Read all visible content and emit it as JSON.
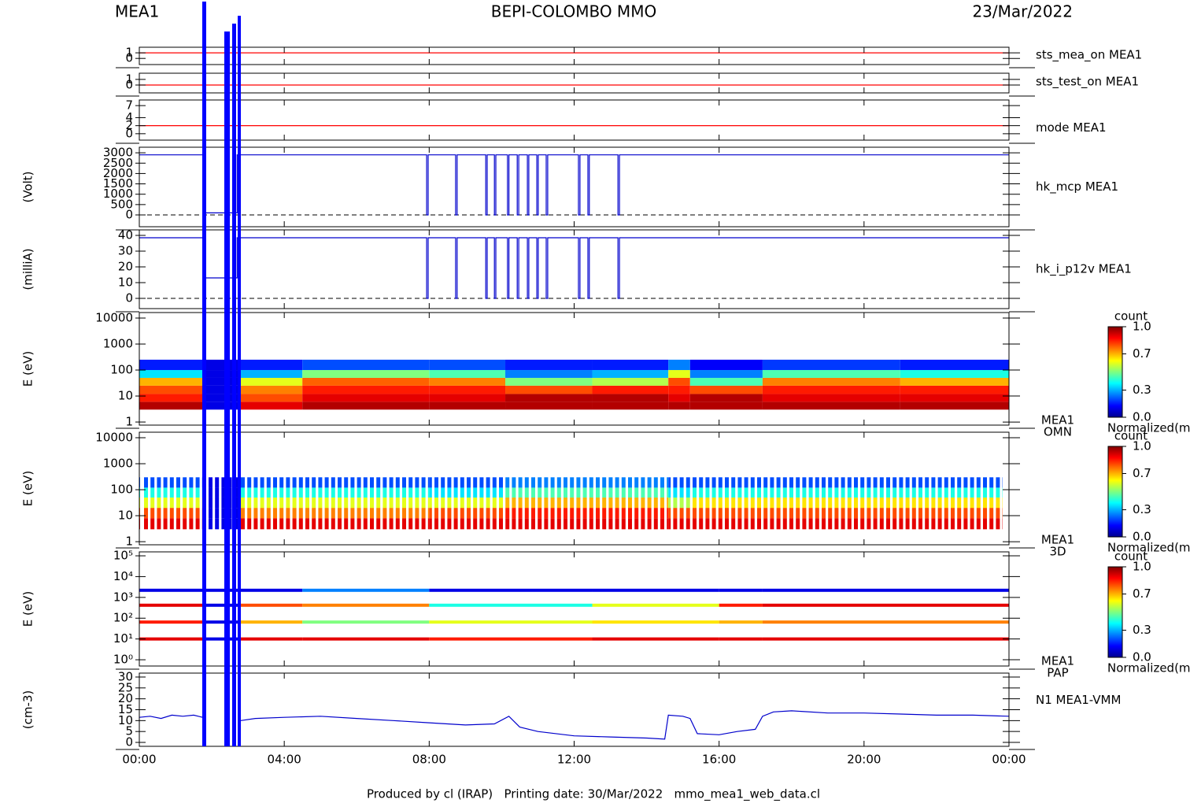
{
  "header": {
    "left": "MEA1",
    "title": "BEPI-COLOMBO MMO",
    "date": "23/Mar/2022"
  },
  "footer": "Produced by cl (IRAP)   Printing date: 30/Mar/2022   mmo_mea1_web_data.cl",
  "chart_data": [
    {
      "type": "line",
      "right_label": "sts_mea_on MEA1",
      "color": "#ff0000",
      "ylim": [
        -1.1,
        2
      ],
      "yticks": [
        0,
        1
      ],
      "x": [
        0,
        24
      ],
      "values": [
        1,
        1
      ]
    },
    {
      "type": "line",
      "right_label": "sts_test_on MEA1",
      "color": "#ff0000",
      "ylim": [
        -1.4,
        2.1
      ],
      "yticks": [
        0,
        1
      ],
      "x": [
        0,
        24
      ],
      "values": [
        0,
        0
      ]
    },
    {
      "type": "line",
      "right_label": "mode MEA1",
      "color": "#ff0000",
      "ylim": [
        -1.6,
        8.4
      ],
      "yticks": [
        0,
        2,
        4,
        7
      ],
      "x": [
        0,
        24
      ],
      "values": [
        2,
        2
      ]
    },
    {
      "type": "line",
      "ylabel": "(Volt)",
      "right_label": "hk_mcp MEA1",
      "color": "#0000cc",
      "zero_line": "dashed",
      "ylim": [
        -570,
        3270
      ],
      "yticks": [
        0,
        500,
        1000,
        1500,
        2000,
        2500,
        3000
      ],
      "x": [
        0,
        1.8,
        1.8,
        2.7,
        2.7,
        7.93,
        7.93,
        7.97,
        7.97,
        8.73,
        8.73,
        8.77,
        8.77,
        9.56,
        9.56,
        9.6,
        9.6,
        9.8,
        9.8,
        9.84,
        9.84,
        10.16,
        10.16,
        10.2,
        10.2,
        10.43,
        10.43,
        10.47,
        10.47,
        10.71,
        10.71,
        10.75,
        10.75,
        10.97,
        10.97,
        11.01,
        11.01,
        11.23,
        11.23,
        11.27,
        11.27,
        12.12,
        12.12,
        12.16,
        12.16,
        12.38,
        12.38,
        12.42,
        12.42,
        13.21,
        13.21,
        13.25,
        13.25,
        24
      ],
      "values": [
        2900,
        2900,
        100,
        100,
        2900,
        2900,
        0,
        0,
        2900,
        2900,
        0,
        0,
        2900,
        2900,
        0,
        0,
        2900,
        2900,
        0,
        0,
        2900,
        2900,
        0,
        0,
        2900,
        2900,
        0,
        0,
        2900,
        2900,
        0,
        0,
        2900,
        2900,
        0,
        0,
        2900,
        2900,
        0,
        0,
        2900,
        2900,
        0,
        0,
        2900,
        2900,
        0,
        0,
        2900,
        2900,
        0,
        0,
        2900,
        2900
      ]
    },
    {
      "type": "line",
      "ylabel": "(milliA)",
      "right_label": "hk_i_p12v MEA1",
      "color": "#0000cc",
      "zero_line": "dashed",
      "ylim": [
        -6.5,
        43.5
      ],
      "yticks": [
        0,
        10,
        20,
        30,
        40
      ],
      "x": [
        0,
        1.8,
        1.8,
        2.7,
        2.7,
        7.93,
        7.93,
        7.97,
        7.97,
        8.73,
        8.73,
        8.77,
        8.77,
        9.56,
        9.56,
        9.6,
        9.6,
        9.8,
        9.8,
        9.84,
        9.84,
        10.16,
        10.16,
        10.2,
        10.2,
        10.43,
        10.43,
        10.47,
        10.47,
        10.71,
        10.71,
        10.75,
        10.75,
        10.97,
        10.97,
        11.01,
        11.01,
        11.23,
        11.23,
        11.27,
        11.27,
        12.12,
        12.12,
        12.16,
        12.16,
        12.38,
        12.38,
        12.42,
        12.42,
        13.21,
        13.21,
        13.25,
        13.25,
        24
      ],
      "values": [
        38.5,
        38.5,
        13,
        13,
        38.5,
        38.5,
        0,
        0,
        38.5,
        38.5,
        0,
        0,
        38.5,
        38.5,
        0,
        0,
        38.5,
        38.5,
        0,
        0,
        38.5,
        38.5,
        0,
        0,
        38.5,
        38.5,
        0,
        0,
        38.5,
        38.5,
        0,
        0,
        38.5,
        38.5,
        0,
        0,
        38.5,
        38.5,
        0,
        0,
        38.5,
        38.5,
        0,
        0,
        38.5,
        38.5,
        0,
        0,
        38.5,
        38.5,
        0,
        0,
        38.5,
        38.5
      ]
    },
    {
      "type": "spectrogram",
      "ylabel": "E (eV)",
      "right_label": [
        "MEA1",
        "OMN"
      ],
      "log_y": true,
      "ylim": [
        0.76,
        16300
      ],
      "yticks": [
        1,
        10,
        100,
        1000,
        10000
      ],
      "x_edges": [
        0,
        1.8,
        2.8,
        4.5,
        8,
        10.1,
        12.5,
        14.6,
        15.2,
        17.2,
        21,
        24
      ],
      "y_edges": [
        3,
        6,
        12,
        25,
        50,
        100,
        250
      ],
      "values": [
        [
          0.95,
          0.1,
          0.9,
          0.95,
          0.95,
          0.95,
          0.95,
          0.95,
          0.95,
          0.95,
          0.95
        ],
        [
          0.85,
          0.1,
          0.8,
          0.9,
          0.9,
          0.95,
          0.95,
          0.9,
          0.95,
          0.9,
          0.9
        ],
        [
          0.8,
          0.1,
          0.75,
          0.85,
          0.85,
          0.8,
          0.85,
          0.85,
          0.8,
          0.85,
          0.85
        ],
        [
          0.7,
          0.1,
          0.6,
          0.78,
          0.75,
          0.5,
          0.55,
          0.8,
          0.45,
          0.75,
          0.7
        ],
        [
          0.35,
          0.1,
          0.3,
          0.5,
          0.45,
          0.25,
          0.3,
          0.6,
          0.25,
          0.45,
          0.4
        ],
        [
          0.15,
          0.1,
          0.15,
          0.2,
          0.2,
          0.15,
          0.15,
          0.25,
          0.12,
          0.18,
          0.15
        ]
      ],
      "colorbar": {
        "title": "count",
        "label": "Normalized(m",
        "ticks": [
          {
            "value": 0,
            "label": "0.0"
          },
          {
            "value": 0.3,
            "label": "0.3"
          },
          {
            "value": 0.7,
            "label": "0.7"
          },
          {
            "value": 1,
            "label": "1.0"
          }
        ]
      }
    },
    {
      "type": "spectrogram",
      "ylabel": "E (eV)",
      "right_label": [
        "MEA1",
        "3D"
      ],
      "log_y": true,
      "ylim": [
        0.76,
        16300
      ],
      "yticks": [
        1,
        10,
        100,
        1000,
        10000
      ],
      "x_edges": [
        0,
        1.8,
        2.8,
        8,
        10.1,
        14.6,
        15.2,
        24
      ],
      "y_edges": [
        3,
        8,
        20,
        50,
        120,
        300
      ],
      "values": [
        [
          0.9,
          0.1,
          0.9,
          0.9,
          0.9,
          0.9,
          0.9
        ],
        [
          0.8,
          0.1,
          0.75,
          0.8,
          0.85,
          0.8,
          0.8
        ],
        [
          0.6,
          0.1,
          0.6,
          0.6,
          0.7,
          0.55,
          0.65
        ],
        [
          0.4,
          0.1,
          0.4,
          0.35,
          0.45,
          0.35,
          0.4
        ],
        [
          0.2,
          0.1,
          0.2,
          0.2,
          0.25,
          0.2,
          0.2
        ]
      ],
      "colorbar": {
        "title": "count",
        "label": "Normalized(m",
        "ticks": [
          {
            "value": 0,
            "label": "0.0"
          },
          {
            "value": 0.3,
            "label": "0.3"
          },
          {
            "value": 0.7,
            "label": "0.7"
          },
          {
            "value": 1,
            "label": "1.0"
          }
        ]
      }
    },
    {
      "type": "pap",
      "ylabel": "E (eV)",
      "right_label": [
        "MEA1",
        "PAP"
      ],
      "log_y": true,
      "ylim": [
        0.5,
        155000
      ],
      "yticks": [
        {
          "value": 1,
          "label": "10⁰"
        },
        {
          "value": 10,
          "label": "10¹"
        },
        {
          "value": 100,
          "label": "10²"
        },
        {
          "value": 1000,
          "label": "10³"
        },
        {
          "value": 10000,
          "label": "10⁴"
        },
        {
          "value": 100000,
          "label": "10⁵"
        }
      ],
      "x_edges": [
        0,
        1.8,
        2.8,
        4.5,
        8,
        12.5,
        16,
        17.2,
        24
      ],
      "energies": [
        2200,
        420,
        65,
        10
      ],
      "values": [
        [
          0.1,
          0.1,
          0.1,
          0.25,
          0.1,
          0.1,
          0.1,
          0.1
        ],
        [
          0.9,
          0.1,
          0.8,
          0.75,
          0.4,
          0.6,
          0.85,
          0.9
        ],
        [
          0.85,
          0.1,
          0.7,
          0.5,
          0.6,
          0.65,
          0.7,
          0.75
        ],
        [
          0.9,
          0.1,
          0.9,
          0.9,
          0.85,
          0.9,
          0.9,
          0.9
        ]
      ],
      "colorbar": {
        "title": "count",
        "label": "Normalized(m",
        "ticks": [
          {
            "value": 0,
            "label": "0.0"
          },
          {
            "value": 0.3,
            "label": "0.3"
          },
          {
            "value": 0.7,
            "label": "0.7"
          },
          {
            "value": 1,
            "label": "1.0"
          }
        ]
      }
    },
    {
      "type": "line",
      "ylabel": "(cm-3)",
      "right_label": "N1 MEA1-VMM",
      "color": "#0000cc",
      "ylim": [
        -1.8,
        31.8
      ],
      "yticks": [
        0,
        5,
        10,
        15,
        20,
        25,
        30
      ],
      "xlim": [
        0,
        24
      ],
      "xticks": [
        {
          "value": 0,
          "label": "00:00"
        },
        {
          "value": 4,
          "label": "04:00"
        },
        {
          "value": 8,
          "label": "08:00"
        },
        {
          "value": 12,
          "label": "12:00"
        },
        {
          "value": 16,
          "label": "16:00"
        },
        {
          "value": 20,
          "label": "20:00"
        },
        {
          "value": 24,
          "label": "00:00"
        }
      ],
      "x": [
        0,
        0.3,
        0.6,
        0.9,
        1.2,
        1.5,
        1.75,
        1.8,
        2.8,
        3.2,
        4,
        5,
        6,
        7,
        8,
        9,
        9.8,
        10.2,
        10.5,
        11,
        12,
        13,
        14,
        14.5,
        14.6,
        15,
        15.2,
        15.4,
        16,
        16.5,
        17,
        17.2,
        17.5,
        18,
        19,
        20,
        21,
        22,
        23,
        24
      ],
      "values": [
        11.5,
        12,
        11,
        12.5,
        12,
        12.5,
        11.5,
        null,
        10,
        11,
        11.5,
        12,
        11,
        10,
        9,
        8,
        8.5,
        12,
        7,
        5,
        3,
        2.5,
        2,
        1.5,
        12.5,
        12,
        11,
        4,
        3.5,
        5,
        6,
        12,
        14,
        14.5,
        13.5,
        13.5,
        13,
        12.5,
        12.5,
        12
      ]
    }
  ]
}
